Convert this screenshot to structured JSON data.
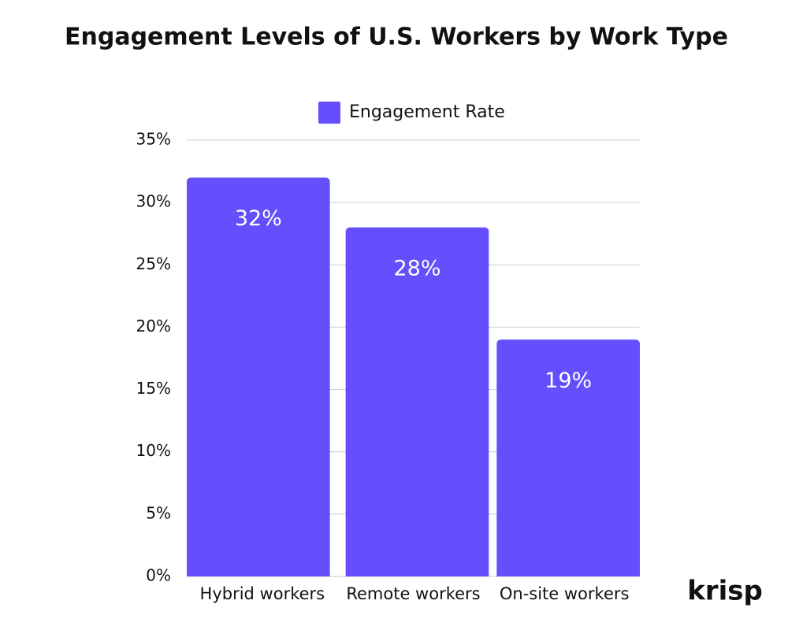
{
  "chart_data": {
    "type": "bar",
    "title": "Engagement Levels of U.S. Workers by Work Type",
    "categories": [
      "Hybrid workers",
      "Remote workers",
      "On-site workers"
    ],
    "series": [
      {
        "name": "Engagement Rate",
        "color": "#654ffc",
        "values": [
          32,
          28,
          19
        ],
        "value_labels": [
          "32%",
          "28%",
          "19%"
        ]
      }
    ],
    "ylim": [
      0,
      35
    ],
    "yticks": [
      {
        "value": 0,
        "label": "0%"
      },
      {
        "value": 5,
        "label": "5%"
      },
      {
        "value": 10,
        "label": "10%"
      },
      {
        "value": 15,
        "label": "15%"
      },
      {
        "value": 20,
        "label": "20%"
      },
      {
        "value": 25,
        "label": "25%"
      },
      {
        "value": 30,
        "label": "30%"
      },
      {
        "value": 35,
        "label": "35%"
      }
    ],
    "grid": true,
    "legend": "top"
  },
  "brand": "krisp"
}
